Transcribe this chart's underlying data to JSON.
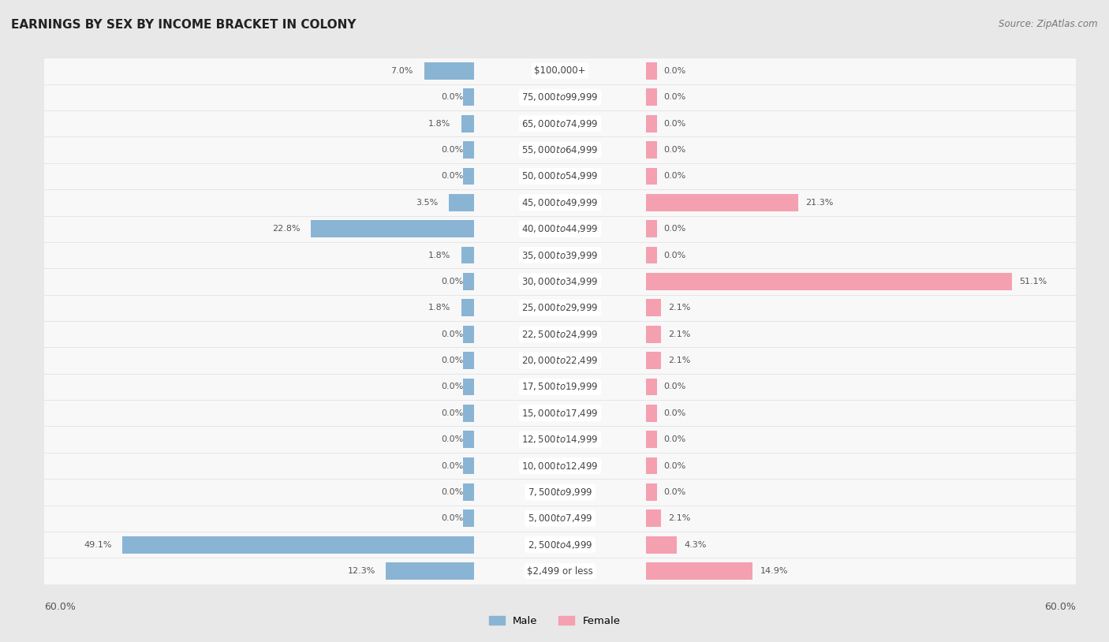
{
  "title": "EARNINGS BY SEX BY INCOME BRACKET IN COLONY",
  "source": "Source: ZipAtlas.com",
  "categories": [
    "$2,499 or less",
    "$2,500 to $4,999",
    "$5,000 to $7,499",
    "$7,500 to $9,999",
    "$10,000 to $12,499",
    "$12,500 to $14,999",
    "$15,000 to $17,499",
    "$17,500 to $19,999",
    "$20,000 to $22,499",
    "$22,500 to $24,999",
    "$25,000 to $29,999",
    "$30,000 to $34,999",
    "$35,000 to $39,999",
    "$40,000 to $44,999",
    "$45,000 to $49,999",
    "$50,000 to $54,999",
    "$55,000 to $64,999",
    "$65,000 to $74,999",
    "$75,000 to $99,999",
    "$100,000+"
  ],
  "male_values": [
    12.3,
    49.1,
    0.0,
    0.0,
    0.0,
    0.0,
    0.0,
    0.0,
    0.0,
    0.0,
    1.8,
    0.0,
    1.8,
    22.8,
    3.5,
    0.0,
    0.0,
    1.8,
    0.0,
    7.0
  ],
  "female_values": [
    14.9,
    4.3,
    2.1,
    0.0,
    0.0,
    0.0,
    0.0,
    0.0,
    2.1,
    2.1,
    2.1,
    51.1,
    0.0,
    0.0,
    21.3,
    0.0,
    0.0,
    0.0,
    0.0,
    0.0
  ],
  "male_color": "#8ab4d4",
  "female_color": "#f4a0b0",
  "background_color": "#e8e8e8",
  "bar_background": "#f8f8f8",
  "row_separator": "#dddddd",
  "axis_limit": 60.0,
  "min_bar": 1.5,
  "bar_height": 0.65,
  "label_fontsize": 8.5,
  "title_fontsize": 11,
  "source_fontsize": 8.5
}
